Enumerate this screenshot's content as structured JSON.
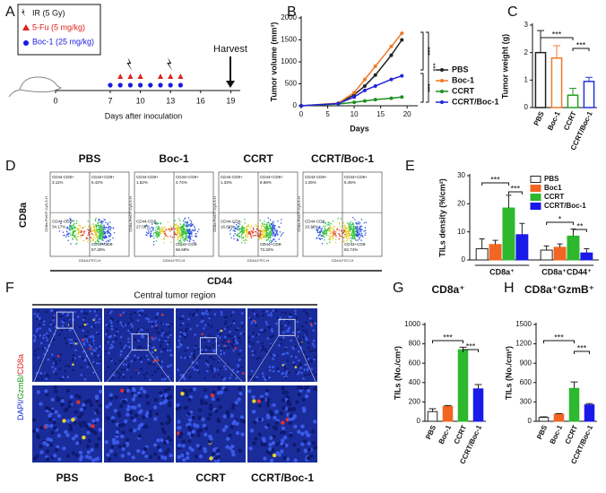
{
  "panel_labels": [
    "A",
    "B",
    "C",
    "D",
    "E",
    "F",
    "G",
    "H"
  ],
  "panel_a": {
    "legend": [
      "IR (5 Gy)",
      "5-Fu (5 mg/kg)",
      "Boc-1 (25 mg/kg)"
    ],
    "harvest": "Harvest",
    "axis_label": "Days after inoculation",
    "axis_ticks": [
      0,
      7,
      10,
      13,
      16,
      19
    ],
    "ir_days": [
      9,
      13
    ],
    "fu_days": [
      8,
      9,
      10,
      12,
      13,
      14
    ],
    "boc_days": [
      7,
      8,
      9,
      10,
      11,
      12,
      13,
      14
    ]
  },
  "panel_d": {
    "y_label": "CD8a",
    "x_label": "CD44",
    "plot_x_axis": "CD44-FITC-H",
    "plot_y_axis": "CD8a-PerCP-Cy5-5-H",
    "plots": [
      {
        "title": "PBS",
        "quadrants": [
          {
            "name": "CD44-CD8+",
            "value": "3.11%"
          },
          {
            "name": "CD44+CD8+",
            "value": "5.42%"
          },
          {
            "name": "CD44-CD8-",
            "value": "34.17%"
          },
          {
            "name": "CD44+CD8-",
            "value": "57.30%"
          }
        ]
      },
      {
        "title": "Boc-1",
        "quadrants": [
          {
            "name": "CD44-CD8+",
            "value": "1.62%"
          },
          {
            "name": "CD44+CD8+",
            "value": "4.74%"
          },
          {
            "name": "CD44-CD8-",
            "value": "27.06%"
          },
          {
            "name": "CD44+CD8-",
            "value": "66.58%"
          }
        ]
      },
      {
        "title": "CCRT",
        "quadrants": [
          {
            "name": "CD44-CD8+",
            "value": "1.33%"
          },
          {
            "name": "CD44+CD8+",
            "value": "8.68%"
          },
          {
            "name": "CD44-CD8-",
            "value": "16.66%"
          },
          {
            "name": "CD44+CD8-",
            "value": "73.32%"
          }
        ]
      },
      {
        "title": "CCRT/Boc-1",
        "quadrants": [
          {
            "name": "CD44-CD8+",
            "value": "1.25%"
          },
          {
            "name": "CD44+CD8+",
            "value": "5.45%"
          },
          {
            "name": "CD44-CD8-",
            "value": "10.36%"
          },
          {
            "name": "CD44+CD8-",
            "value": "82.74%"
          }
        ]
      }
    ]
  },
  "panel_f": {
    "title": "Central tumor region",
    "stain_label": [
      "DAPI/",
      "GzmB/",
      "CD8a"
    ],
    "groups": [
      "PBS",
      "Boc-1",
      "CCRT",
      "CCRT/Boc-1"
    ]
  },
  "chart_data": [
    {
      "type": "line",
      "x_label": "Days",
      "y_label": "Tumor volume (mm³)",
      "x": [
        0,
        7,
        10,
        12,
        14,
        17,
        19
      ],
      "series": [
        {
          "name": "PBS",
          "color": "#222222",
          "values": [
            0,
            50,
            250,
            450,
            700,
            1150,
            1500
          ]
        },
        {
          "name": "Boc-1",
          "color": "#f07a28",
          "values": [
            0,
            60,
            300,
            600,
            900,
            1350,
            1650
          ]
        },
        {
          "name": "CCRT",
          "color": "#1f8f1f",
          "values": [
            0,
            40,
            80,
            110,
            140,
            170,
            200
          ]
        },
        {
          "name": "CCRT/Boc-1",
          "color": "#2222dd",
          "values": [
            0,
            50,
            200,
            350,
            450,
            600,
            680
          ]
        }
      ],
      "xlim": [
        0,
        22
      ],
      "xticks": [
        0,
        5,
        10,
        15,
        20
      ],
      "ylim": [
        0,
        2000
      ],
      "yticks": [
        0,
        500,
        1000,
        1500,
        2000
      ],
      "annotations": [
        "***",
        "***",
        "***"
      ]
    },
    {
      "type": "bar",
      "bar_style": "outline",
      "y_label": "Tumor weight (g)",
      "categories": [
        "PBS",
        "Boc-1",
        "CCRT",
        "CCRT/Boc-1"
      ],
      "values": [
        2.0,
        1.8,
        0.45,
        0.95
      ],
      "errors": [
        0.8,
        0.45,
        0.25,
        0.15
      ],
      "colors": [
        "#222222",
        "#f07a28",
        "#22a022",
        "#2233dd"
      ],
      "ylim": [
        0,
        3
      ],
      "yticks": [
        0,
        1,
        2,
        3
      ],
      "annotations": [
        "***",
        "***"
      ]
    },
    {
      "type": "grouped_bar",
      "y_label": "TILs density (%/cm²)",
      "categories": [
        "CD8a⁺",
        "CD8a⁺CD44⁺"
      ],
      "series": [
        {
          "name": "PBS",
          "color": "#ffffff",
          "values": [
            4,
            3.5
          ],
          "errors": [
            3.5,
            1.5
          ]
        },
        {
          "name": "Boc1",
          "color": "#f26522",
          "values": [
            5.5,
            4.5
          ],
          "errors": [
            1.5,
            1.2
          ]
        },
        {
          "name": "CCRT",
          "color": "#2db82d",
          "values": [
            18.5,
            8.5
          ],
          "errors": [
            4.5,
            2.5
          ]
        },
        {
          "name": "CCRT/Boc-1",
          "color": "#1a1ae8",
          "values": [
            9,
            2.5
          ],
          "errors": [
            4,
            1.5
          ]
        }
      ],
      "ylim": [
        0,
        30
      ],
      "yticks": [
        0,
        10,
        20,
        30
      ],
      "annotations": [
        "***",
        "***",
        "*",
        "**"
      ]
    },
    {
      "type": "bar",
      "bar_style": "fill",
      "title": "CD8a⁺",
      "y_label": "TILs (No./cm²)",
      "categories": [
        "PBS",
        "Boc-1",
        "CCRT",
        "CCRT/Boc-1"
      ],
      "values": [
        100,
        155,
        740,
        335
      ],
      "errors": [
        30,
        8,
        25,
        45
      ],
      "colors": [
        "#ffffff",
        "#f26522",
        "#2db82d",
        "#1a1ae8"
      ],
      "ylim": [
        0,
        1000
      ],
      "yticks": [
        0,
        200,
        400,
        600,
        800,
        1000
      ],
      "annotations": [
        "***",
        "***"
      ]
    },
    {
      "type": "bar",
      "bar_style": "fill",
      "title": "CD8a⁺GzmB⁺",
      "y_label": "TILs (No./cm²)",
      "categories": [
        "PBS",
        "Boc-1",
        "CCRT",
        "CCRT/Boc-1"
      ],
      "values": [
        60,
        110,
        510,
        255
      ],
      "errors": [
        10,
        10,
        100,
        20
      ],
      "colors": [
        "#ffffff",
        "#f26522",
        "#2db82d",
        "#1a1ae8"
      ],
      "ylim": [
        0,
        1500
      ],
      "yticks": [
        0,
        300,
        600,
        900,
        1200,
        1500
      ],
      "annotations": [
        "***",
        "***"
      ]
    }
  ]
}
